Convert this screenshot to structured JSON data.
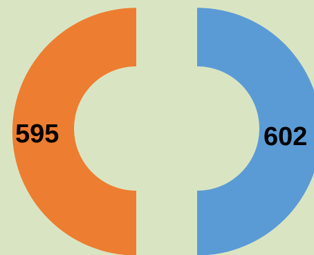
{
  "chart_data": {
    "type": "pie",
    "variant": "split-donut",
    "categories": [
      "",
      ""
    ],
    "values": [
      595,
      602
    ],
    "data_labels": [
      "595",
      "602"
    ],
    "colors": [
      "#ED7D31",
      "#5B9BD5"
    ],
    "background": "#D9E5C2",
    "title": "",
    "legend": "none"
  }
}
